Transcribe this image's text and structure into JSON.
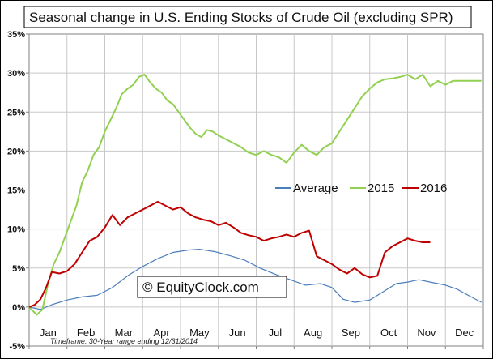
{
  "chart_data": {
    "type": "line",
    "title": "Seasonal change in U.S. Ending Stocks of Crude Oil (excluding SPR)",
    "ylim": [
      -5,
      35
    ],
    "y_ticks": [
      "35%",
      "30%",
      "25%",
      "20%",
      "15%",
      "10%",
      "5%",
      "0%",
      "-5%"
    ],
    "y_tick_values": [
      35,
      30,
      25,
      20,
      15,
      10,
      5,
      0,
      -5
    ],
    "categories": [
      "Jan",
      "Feb",
      "Mar",
      "Apr",
      "May",
      "Jun",
      "Jul",
      "Aug",
      "Sep",
      "Oct",
      "Nov",
      "Dec"
    ],
    "grid": true,
    "legend_position": "center-right",
    "watermark": "© EquityClock.com",
    "footnote": "Timeframe: 30-Year range ending 12/31/2014",
    "series": [
      {
        "name": "Average",
        "color": "#4a7ebb",
        "x": [
          0,
          0.3,
          0.6,
          1.0,
          1.4,
          1.8,
          2.2,
          2.6,
          3.0,
          3.4,
          3.8,
          4.2,
          4.5,
          4.9,
          5.3,
          5.7,
          6.1,
          6.5,
          6.9,
          7.3,
          7.7,
          8.0,
          8.3,
          8.6,
          9.0,
          9.3,
          9.7,
          10.0,
          10.3,
          10.6,
          11.0,
          11.3,
          11.6,
          11.95
        ],
        "values": [
          0,
          -0.3,
          0.3,
          0.9,
          1.3,
          1.5,
          2.5,
          4.0,
          5.2,
          6.2,
          7.0,
          7.3,
          7.4,
          7.1,
          6.6,
          6.0,
          5.0,
          4.2,
          3.5,
          2.8,
          3.0,
          2.5,
          1.0,
          0.6,
          0.9,
          1.8,
          3.0,
          3.2,
          3.5,
          3.2,
          2.8,
          2.3,
          1.5,
          0.6
        ]
      },
      {
        "name": "2015",
        "color": "#92d050",
        "x": [
          0,
          0.2,
          0.35,
          0.5,
          0.65,
          0.8,
          0.95,
          1.1,
          1.25,
          1.4,
          1.55,
          1.7,
          1.85,
          2.0,
          2.15,
          2.3,
          2.45,
          2.6,
          2.75,
          2.9,
          3.05,
          3.2,
          3.35,
          3.5,
          3.65,
          3.8,
          3.95,
          4.1,
          4.25,
          4.4,
          4.55,
          4.7,
          4.85,
          5.0,
          5.2,
          5.4,
          5.6,
          5.8,
          6.0,
          6.2,
          6.4,
          6.6,
          6.8,
          7.0,
          7.2,
          7.4,
          7.6,
          7.8,
          8.0,
          8.2,
          8.4,
          8.6,
          8.8,
          9.0,
          9.2,
          9.4,
          9.6,
          9.8,
          10.0,
          10.2,
          10.4,
          10.6,
          10.8,
          11.0,
          11.2,
          11.4,
          11.6,
          11.95
        ],
        "values": [
          0,
          -1.0,
          -0.3,
          3.0,
          5.5,
          7.0,
          9.0,
          11.0,
          13.0,
          16.0,
          17.5,
          19.5,
          20.5,
          22.5,
          24.0,
          25.5,
          27.3,
          28.0,
          28.5,
          29.5,
          29.8,
          28.8,
          28.0,
          27.5,
          26.5,
          26.0,
          25.0,
          24.0,
          23.0,
          22.2,
          21.8,
          22.7,
          22.5,
          22.0,
          21.5,
          21.0,
          20.5,
          19.8,
          19.5,
          20.0,
          19.5,
          19.2,
          18.5,
          19.8,
          20.8,
          20.0,
          19.5,
          20.5,
          21.0,
          22.5,
          24.0,
          25.5,
          27.0,
          28.0,
          28.8,
          29.2,
          29.3,
          29.5,
          29.8,
          29.2,
          29.8,
          28.3,
          29.0,
          28.5,
          29.0,
          29.0,
          29.0,
          29.0
        ]
      },
      {
        "name": "2016",
        "color": "#c00000",
        "x": [
          0,
          0.15,
          0.3,
          0.45,
          0.6,
          0.8,
          1.0,
          1.2,
          1.4,
          1.6,
          1.8,
          2.0,
          2.2,
          2.4,
          2.6,
          2.8,
          3.0,
          3.2,
          3.4,
          3.6,
          3.8,
          4.0,
          4.2,
          4.4,
          4.6,
          4.8,
          5.0,
          5.2,
          5.4,
          5.6,
          5.8,
          6.0,
          6.2,
          6.4,
          6.6,
          6.8,
          7.0,
          7.2,
          7.4,
          7.6,
          7.8,
          8.0,
          8.2,
          8.4,
          8.6,
          8.8,
          9.0,
          9.2,
          9.4,
          9.6,
          9.8,
          10.0,
          10.2,
          10.4,
          10.6
        ],
        "values": [
          0,
          0.3,
          1.0,
          2.5,
          4.5,
          4.3,
          4.6,
          5.5,
          7.0,
          8.5,
          9.0,
          10.2,
          11.8,
          10.5,
          11.5,
          12.0,
          12.5,
          13.0,
          13.5,
          13.0,
          12.5,
          12.8,
          12.0,
          11.5,
          11.2,
          11.0,
          10.5,
          10.8,
          10.2,
          9.5,
          9.2,
          9.0,
          8.5,
          8.8,
          9.0,
          9.3,
          9.0,
          9.5,
          9.8,
          6.5,
          6.0,
          5.5,
          4.8,
          4.3,
          5.0,
          4.2,
          3.8,
          4.0,
          7.0,
          7.8,
          8.3,
          8.8,
          8.5,
          8.3,
          8.3
        ]
      }
    ]
  }
}
